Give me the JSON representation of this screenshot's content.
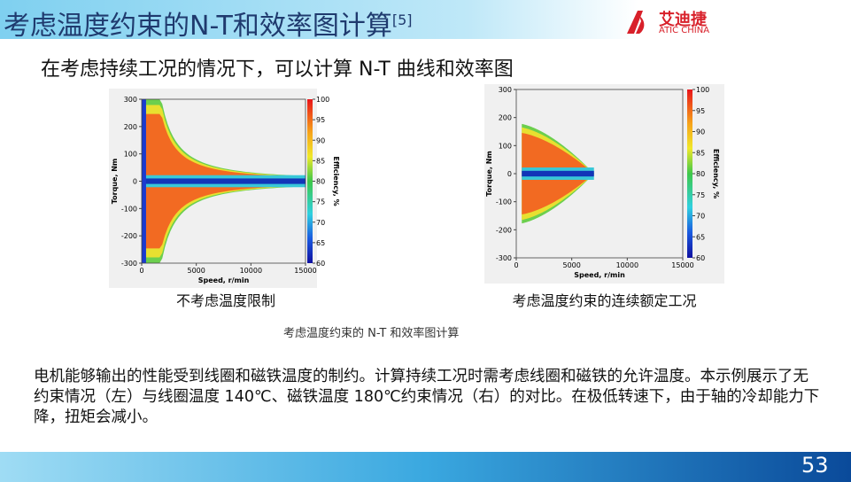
{
  "header": {
    "title": "考虑温度约束的N-T和效率图计算",
    "ref": "[5]",
    "logo_cn": "艾迪捷",
    "logo_en": "ATIC CHINA"
  },
  "subtitle": "在考虑持续工况的情况下，可以计算 N-T 曲线和效率图",
  "figures": [
    {
      "xlabel": "Speed, r/min",
      "ylabel": "Torque, Nm",
      "cblabel": "Efficiency, %",
      "xticks": [
        0,
        5000,
        10000,
        15000
      ],
      "yticks": [
        300,
        200,
        100,
        0,
        -100,
        -200,
        -300
      ],
      "cbticks": [
        100,
        95,
        90,
        85,
        80,
        75,
        70,
        65,
        60
      ],
      "caption": "不考虑温度限制"
    },
    {
      "xlabel": "Speed, r/min",
      "ylabel": "Torque, Nm",
      "cblabel": "Efficiency, %",
      "xticks": [
        0,
        5000,
        10000,
        15000
      ],
      "yticks": [
        300,
        200,
        100,
        0,
        -100,
        -200,
        -300
      ],
      "cbticks": [
        100,
        95,
        90,
        85,
        80,
        75,
        70,
        65,
        60
      ],
      "caption": "考虑温度约束的连续额定工况"
    }
  ],
  "figure_caption": "考虑温度约束的 N-T 和效率图计算",
  "body": "电机能够输出的性能受到线圈和磁铁温度的制约。计算持续工况时需考虑线圈和磁铁的允许温度。本示例展示了无约束情况（左）与线圈温度 140℃、磁铁温度 180℃约束情况（右）的对比。在极低转速下，由于轴的冷却能力下降，扭矩会减小。",
  "page_number": "53"
}
